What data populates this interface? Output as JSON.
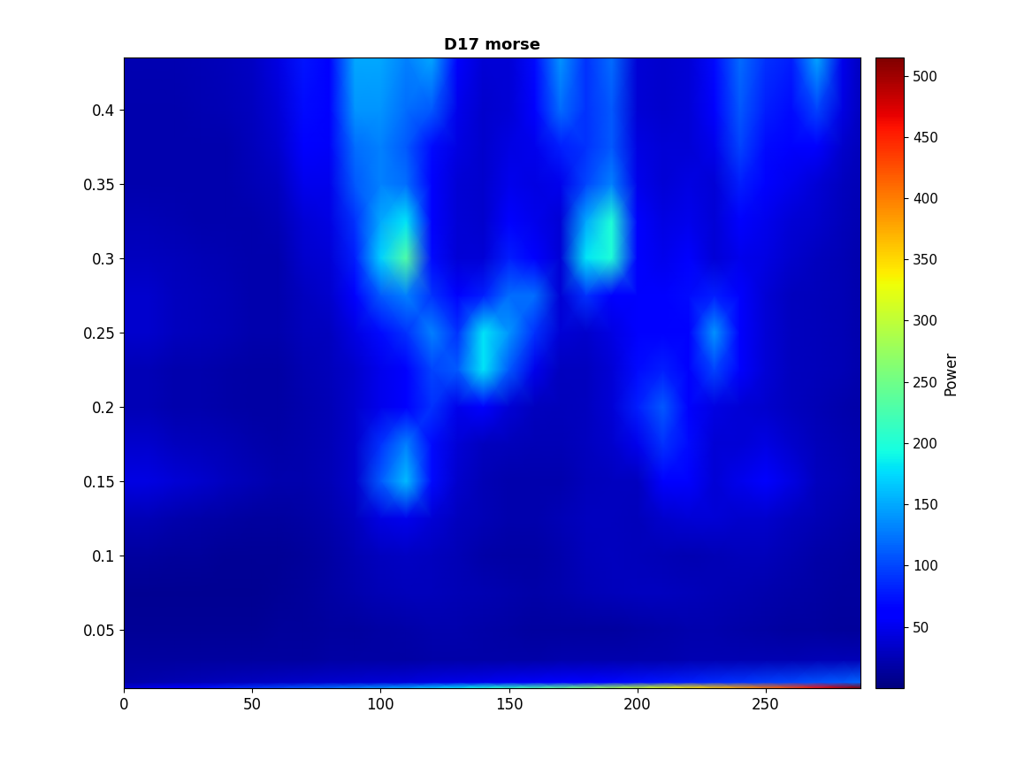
{
  "chart_data": {
    "type": "heatmap",
    "title": "D17 morse",
    "x": [
      0,
      10,
      20,
      30,
      40,
      50,
      60,
      70,
      80,
      90,
      100,
      110,
      120,
      130,
      140,
      150,
      160,
      170,
      180,
      190,
      200,
      210,
      220,
      230,
      240,
      250,
      260,
      270,
      280,
      287
    ],
    "y": [
      0.011,
      0.015,
      0.03,
      0.05,
      0.075,
      0.1,
      0.125,
      0.15,
      0.175,
      0.2,
      0.225,
      0.25,
      0.275,
      0.3,
      0.325,
      0.35,
      0.375,
      0.4,
      0.435
    ],
    "values": [
      [
        40,
        50,
        60,
        70,
        80,
        90,
        100,
        110,
        120,
        130,
        140,
        150,
        165,
        180,
        195,
        210,
        225,
        240,
        260,
        280,
        300,
        320,
        340,
        360,
        380,
        405,
        430,
        460,
        490,
        515
      ],
      [
        20,
        22,
        24,
        26,
        28,
        30,
        32,
        34,
        36,
        38,
        40,
        42,
        45,
        48,
        50,
        53,
        56,
        60,
        64,
        68,
        72,
        76,
        80,
        85,
        90,
        95,
        100,
        105,
        110,
        115
      ],
      [
        15,
        15,
        15,
        15,
        15,
        16,
        16,
        16,
        17,
        17,
        18,
        18,
        19,
        19,
        20,
        20,
        20,
        21,
        21,
        22,
        22,
        22,
        23,
        23,
        24,
        24,
        24,
        25,
        25,
        25
      ],
      [
        12,
        12,
        12,
        12,
        12,
        12,
        13,
        14,
        15,
        16,
        18,
        20,
        22,
        22,
        20,
        18,
        16,
        15,
        15,
        16,
        18,
        20,
        22,
        22,
        20,
        18,
        16,
        15,
        14,
        14
      ],
      [
        10,
        10,
        10,
        10,
        10,
        10,
        12,
        14,
        18,
        22,
        26,
        28,
        28,
        26,
        24,
        22,
        20,
        22,
        26,
        28,
        30,
        30,
        28,
        26,
        24,
        22,
        20,
        18,
        16,
        15
      ],
      [
        15,
        15,
        14,
        14,
        12,
        12,
        12,
        14,
        18,
        24,
        30,
        32,
        30,
        25,
        20,
        18,
        18,
        22,
        28,
        30,
        28,
        26,
        24,
        26,
        28,
        28,
        24,
        20,
        18,
        16
      ],
      [
        25,
        25,
        22,
        20,
        18,
        16,
        16,
        18,
        22,
        30,
        45,
        50,
        40,
        30,
        25,
        22,
        22,
        25,
        30,
        30,
        28,
        35,
        40,
        40,
        35,
        35,
        30,
        25,
        22,
        20
      ],
      [
        45,
        45,
        40,
        35,
        30,
        25,
        22,
        22,
        26,
        35,
        110,
        160,
        70,
        35,
        25,
        22,
        22,
        22,
        28,
        30,
        30,
        60,
        60,
        40,
        50,
        60,
        45,
        30,
        25,
        22
      ],
      [
        35,
        35,
        30,
        28,
        25,
        22,
        20,
        22,
        25,
        35,
        90,
        130,
        70,
        40,
        30,
        28,
        25,
        25,
        30,
        35,
        50,
        90,
        70,
        40,
        40,
        45,
        35,
        28,
        24,
        22
      ],
      [
        25,
        25,
        22,
        22,
        20,
        18,
        18,
        22,
        25,
        35,
        50,
        60,
        90,
        50,
        60,
        40,
        30,
        28,
        30,
        40,
        80,
        110,
        60,
        45,
        40,
        35,
        30,
        25,
        22,
        20
      ],
      [
        25,
        25,
        22,
        22,
        20,
        18,
        18,
        24,
        28,
        35,
        50,
        60,
        100,
        110,
        180,
        110,
        50,
        30,
        30,
        40,
        70,
        80,
        60,
        100,
        60,
        40,
        30,
        28,
        25,
        22
      ],
      [
        35,
        35,
        30,
        28,
        25,
        22,
        22,
        28,
        30,
        45,
        70,
        90,
        130,
        90,
        180,
        140,
        90,
        40,
        35,
        45,
        60,
        60,
        60,
        140,
        60,
        40,
        30,
        28,
        25,
        22
      ],
      [
        35,
        35,
        30,
        28,
        25,
        22,
        22,
        30,
        35,
        60,
        110,
        130,
        90,
        60,
        80,
        120,
        120,
        40,
        90,
        60,
        60,
        60,
        70,
        80,
        60,
        40,
        30,
        28,
        25,
        22
      ],
      [
        30,
        30,
        28,
        26,
        24,
        22,
        22,
        35,
        40,
        80,
        170,
        230,
        70,
        40,
        40,
        80,
        60,
        40,
        180,
        200,
        60,
        50,
        60,
        40,
        50,
        45,
        35,
        30,
        25,
        22
      ],
      [
        25,
        25,
        24,
        22,
        22,
        22,
        25,
        40,
        45,
        90,
        150,
        180,
        60,
        40,
        35,
        60,
        50,
        40,
        150,
        200,
        60,
        45,
        50,
        40,
        60,
        50,
        40,
        35,
        28,
        24
      ],
      [
        22,
        22,
        22,
        22,
        22,
        25,
        30,
        50,
        50,
        110,
        130,
        120,
        60,
        40,
        35,
        50,
        45,
        50,
        100,
        130,
        50,
        40,
        45,
        40,
        80,
        60,
        50,
        40,
        30,
        25
      ],
      [
        22,
        22,
        22,
        22,
        22,
        28,
        35,
        60,
        55,
        120,
        130,
        110,
        70,
        45,
        35,
        45,
        50,
        80,
        90,
        110,
        45,
        40,
        40,
        50,
        100,
        70,
        60,
        60,
        35,
        28
      ],
      [
        22,
        22,
        22,
        24,
        25,
        30,
        40,
        70,
        60,
        140,
        140,
        120,
        110,
        50,
        35,
        40,
        60,
        120,
        90,
        110,
        40,
        35,
        40,
        60,
        110,
        80,
        70,
        100,
        45,
        30
      ],
      [
        24,
        24,
        24,
        26,
        28,
        32,
        45,
        75,
        60,
        150,
        150,
        130,
        150,
        60,
        40,
        40,
        70,
        140,
        90,
        120,
        40,
        35,
        40,
        70,
        120,
        90,
        80,
        150,
        50,
        30
      ]
    ],
    "xlim": [
      0,
      287
    ],
    "ylim": [
      0.011,
      0.435
    ],
    "xticks": [
      0,
      50,
      100,
      150,
      200,
      250
    ],
    "yticks": [
      0.05,
      0.1,
      0.15,
      0.2,
      0.25,
      0.3,
      0.35,
      0.4
    ],
    "colorbar": {
      "label": "Power",
      "lim": [
        0,
        515
      ],
      "ticks": [
        50,
        100,
        150,
        200,
        250,
        300,
        350,
        400,
        450,
        500
      ]
    }
  }
}
